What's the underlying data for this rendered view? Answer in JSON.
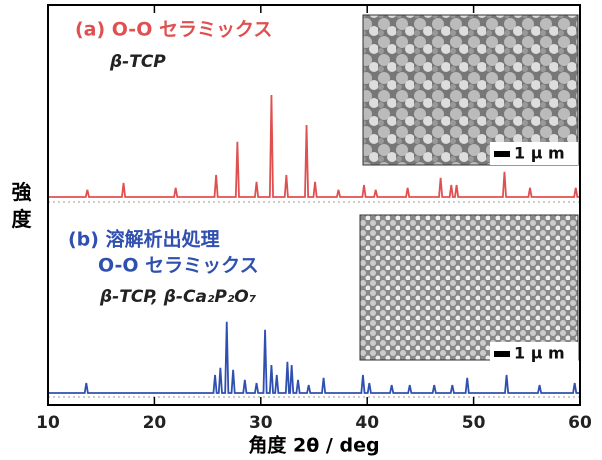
{
  "chart_data": {
    "type": "line",
    "x_label": "角度 2θ / deg",
    "y_label": "強 度",
    "xlim": [
      10,
      60
    ],
    "xticks": [
      10,
      20,
      30,
      40,
      50,
      60
    ],
    "ylim": [
      0,
      100
    ],
    "annotations": [
      "β-TCP",
      "O-O セラミックス",
      "β-TCP,  β-Ca₂P₂O₇",
      "1 μ m",
      "1 μ m"
    ],
    "series": [
      {
        "name": "(a) O-O セラミックス",
        "color": "#e05050",
        "x": [
          10,
          13.55,
          13.7,
          13.85,
          16.95,
          17.1,
          17.25,
          21.85,
          22.0,
          22.15,
          25.65,
          25.8,
          25.95,
          27.65,
          27.8,
          27.95,
          29.45,
          29.6,
          29.75,
          30.85,
          31.0,
          31.15,
          32.25,
          32.4,
          32.55,
          34.15,
          34.3,
          34.45,
          34.95,
          35.1,
          35.25,
          37.15,
          37.3,
          37.45,
          39.55,
          39.7,
          39.85,
          40.65,
          40.8,
          40.95,
          43.65,
          43.8,
          43.95,
          46.75,
          46.9,
          47.05,
          47.75,
          47.9,
          48.05,
          48.25,
          48.4,
          48.55,
          52.75,
          52.9,
          53.05,
          55.15,
          55.3,
          55.45,
          59.45,
          59.6,
          59.75,
          60
        ],
        "values": [
          52,
          52,
          53.8,
          52,
          52,
          55.5,
          52,
          52,
          54.3,
          52,
          52,
          57.5,
          52,
          52,
          65.8,
          52,
          52,
          55.8,
          52,
          52,
          77.5,
          52,
          52,
          57.5,
          52,
          52,
          70,
          52,
          52,
          55.8,
          52,
          52,
          53.8,
          52,
          52,
          55,
          52,
          52,
          53.8,
          52,
          52,
          54.3,
          52,
          52,
          56.8,
          52,
          52,
          55,
          52,
          52,
          55,
          52,
          52,
          58.3,
          52,
          52,
          54.3,
          52,
          52,
          54.3,
          52,
          52
        ]
      },
      {
        "name": "(b) 溶解析出処理",
        "color": "#3050b0",
        "x": [
          10,
          13.45,
          13.6,
          13.75,
          25.55,
          25.7,
          25.85,
          26.05,
          26.2,
          26.35,
          26.65,
          26.8,
          26.95,
          27.25,
          27.4,
          27.55,
          28.35,
          28.5,
          28.65,
          29.45,
          29.6,
          29.75,
          30.25,
          30.4,
          30.55,
          30.85,
          31.0,
          31.15,
          31.35,
          31.5,
          31.65,
          32.35,
          32.5,
          32.65,
          32.75,
          32.9,
          33.05,
          33.35,
          33.5,
          33.65,
          34.35,
          34.5,
          34.65,
          35.75,
          35.9,
          36.05,
          39.45,
          39.6,
          39.75,
          40.05,
          40.2,
          40.35,
          42.15,
          42.3,
          42.45,
          43.85,
          44.0,
          44.15,
          46.15,
          46.3,
          46.45,
          47.85,
          48.0,
          48.15,
          49.25,
          49.4,
          49.55,
          52.95,
          53.1,
          53.25,
          56.05,
          56.2,
          56.35,
          59.35,
          59.5,
          59.65,
          60
        ],
        "values": [
          3,
          3,
          5.5,
          3,
          3,
          7.5,
          3,
          3,
          9.3,
          3,
          3,
          20.8,
          3,
          3,
          8.8,
          3,
          3,
          6.3,
          3,
          3,
          5.5,
          3,
          3,
          18.8,
          3,
          3,
          10,
          3,
          3,
          7.5,
          3,
          3,
          10.8,
          3,
          3,
          10,
          3,
          3,
          6.3,
          3,
          3,
          5,
          3,
          3,
          6.8,
          3,
          3,
          7.5,
          3,
          3,
          5.5,
          3,
          3,
          5,
          3,
          3,
          5,
          3,
          3,
          5,
          3,
          3,
          5,
          3,
          3,
          6.8,
          3,
          3,
          7.5,
          3,
          3,
          5,
          3,
          3,
          5.5,
          3,
          3
        ]
      }
    ]
  }
}
